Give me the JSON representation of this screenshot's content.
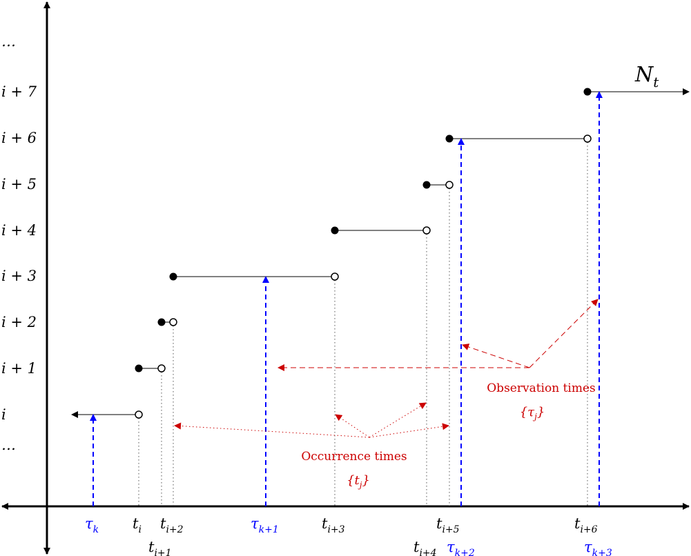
{
  "y_labels": {
    "dots_top": "…",
    "i7": "i + 7",
    "i6": "i + 6",
    "i5": "i + 5",
    "i4": "i + 4",
    "i3": "i + 3",
    "i2": "i + 2",
    "i1": "i + 1",
    "i0": "i",
    "dots_bottom": "…"
  },
  "process_label": {
    "base": "N",
    "sub": "t"
  },
  "occurrence_ticks": {
    "t_i": {
      "base": "t",
      "sub": "i"
    },
    "t_i1": {
      "base": "t",
      "sub": "i+1"
    },
    "t_i2": {
      "base": "t",
      "sub": "i+2"
    },
    "t_i3": {
      "base": "t",
      "sub": "i+3"
    },
    "t_i4": {
      "base": "t",
      "sub": "i+4"
    },
    "t_i5": {
      "base": "t",
      "sub": "i+5"
    },
    "t_i6": {
      "base": "t",
      "sub": "i+6"
    }
  },
  "observation_ticks": {
    "tau_k": {
      "base": "τ",
      "sub": "k"
    },
    "tau_k1": {
      "base": "τ",
      "sub": "k+1"
    },
    "tau_k2": {
      "base": "τ",
      "sub": "k+2"
    },
    "tau_k3": {
      "base": "τ",
      "sub": "k+3"
    }
  },
  "annotations": {
    "observation_title": "Observation times",
    "observation_set": "{τj}",
    "observation_set_parts": {
      "open": "{",
      "base": "τ",
      "sub": "j",
      "close": "}"
    },
    "occurrence_title": "Occurrence times",
    "occurrence_set": "{tj}",
    "occurrence_set_parts": {
      "open": "{",
      "base": "t",
      "sub": "j",
      "close": "}"
    }
  },
  "colors": {
    "axis": "#000000",
    "step": "#000000",
    "observation": "#0000ff",
    "annotation": "#cc0000",
    "guide": "#555555"
  }
}
